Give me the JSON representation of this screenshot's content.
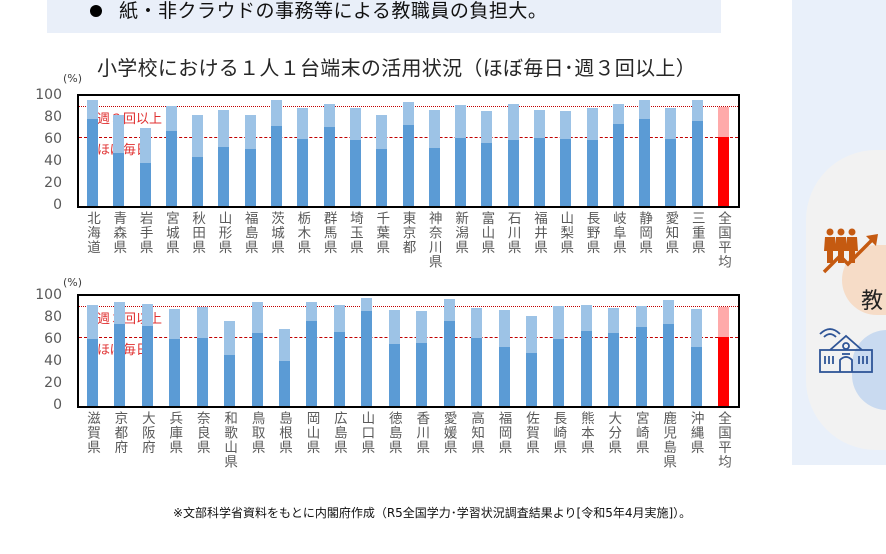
{
  "header": {
    "bullet_text": "紙・非クラウドの事務等による教職員の負担大。"
  },
  "right_panel": {
    "visible_char": "教",
    "icons": [
      "people-growth-icon",
      "school-wifi-icon"
    ]
  },
  "chart": {
    "title": "小学校における１人１台端末の活用状況（ほぼ毎日･週３回以上）",
    "unit": "(%)",
    "y_ticks": [
      "100",
      "80",
      "60",
      "40",
      "20",
      "0"
    ],
    "ref_labels": {
      "weekly3": "週３回以上",
      "daily": "ほぼ毎日"
    }
  },
  "footnote": "※文部科学省資料をもとに内閣府作成（R5全国学力･学習状況調査結果より[令和5年4月実施]）。",
  "chart_data": [
    {
      "type": "bar",
      "title": "小学校における１人１台端末の活用状況（ほぼ毎日･週３回以上）",
      "ylabel": "(%)",
      "ylim": [
        0,
        100
      ],
      "grid": false,
      "reference_lines": [
        {
          "name": "週３回以上",
          "value": 90,
          "style": "dotted"
        },
        {
          "name": "ほぼ毎日",
          "value": 63,
          "style": "dashed"
        }
      ],
      "categories": [
        "北海道",
        "青森県",
        "岩手県",
        "宮城県",
        "秋田県",
        "山形県",
        "福島県",
        "茨城県",
        "栃木県",
        "群馬県",
        "埼玉県",
        "千葉県",
        "東京都",
        "神奈川県",
        "新潟県",
        "富山県",
        "石川県",
        "福井県",
        "山梨県",
        "長野県",
        "岐阜県",
        "静岡県",
        "愛知県",
        "三重県",
        "全国平均"
      ],
      "series": [
        {
          "name": "ほぼ毎日",
          "values": [
            79,
            48,
            39,
            68,
            45,
            54,
            52,
            73,
            61,
            72,
            60,
            52,
            74,
            53,
            62,
            57,
            60,
            62,
            61,
            60,
            75,
            79,
            61,
            77,
            63
          ]
        },
        {
          "name": "週３回以上",
          "values": [
            96,
            83,
            71,
            91,
            83,
            87,
            83,
            96,
            89,
            93,
            89,
            83,
            95,
            87,
            92,
            86,
            93,
            87,
            86,
            89,
            93,
            96,
            89,
            96,
            90
          ]
        }
      ]
    },
    {
      "type": "bar",
      "ylabel": "(%)",
      "ylim": [
        0,
        100
      ],
      "grid": false,
      "reference_lines": [
        {
          "name": "週３回以上",
          "value": 90,
          "style": "dotted"
        },
        {
          "name": "ほぼ毎日",
          "value": 63,
          "style": "dashed"
        }
      ],
      "categories": [
        "滋賀県",
        "京都府",
        "大阪府",
        "兵庫県",
        "奈良県",
        "和歌山県",
        "鳥取県",
        "島根県",
        "岡山県",
        "広島県",
        "山口県",
        "徳島県",
        "香川県",
        "愛媛県",
        "高知県",
        "福岡県",
        "佐賀県",
        "長崎県",
        "熊本県",
        "大分県",
        "宮崎県",
        "鹿児島県",
        "沖縄県",
        "全国平均"
      ],
      "series": [
        {
          "name": "ほぼ毎日",
          "values": [
            61,
            75,
            73,
            61,
            62,
            46,
            66,
            41,
            77,
            67,
            86,
            56,
            57,
            77,
            62,
            54,
            48,
            61,
            68,
            66,
            72,
            75,
            54,
            63
          ]
        },
        {
          "name": "週３回以上",
          "values": [
            92,
            95,
            93,
            88,
            90,
            77,
            95,
            70,
            95,
            92,
            98,
            87,
            86,
            97,
            89,
            87,
            82,
            91,
            92,
            89,
            91,
            96,
            88,
            90
          ]
        }
      ]
    }
  ]
}
